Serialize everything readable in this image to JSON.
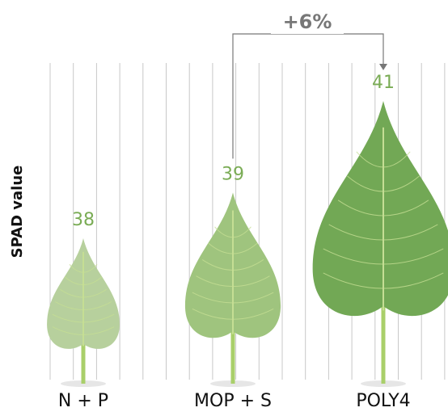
{
  "chart_data": {
    "type": "bar",
    "y_label": "SPAD value",
    "categories": [
      "N + P",
      "MOP + S",
      "POLY4"
    ],
    "values": [
      38,
      39,
      41
    ],
    "colors": [
      "#b7d09d",
      "#9fc47e",
      "#72a855"
    ],
    "label_color": "#7aac55",
    "grid": true,
    "annotation": "+6%"
  }
}
